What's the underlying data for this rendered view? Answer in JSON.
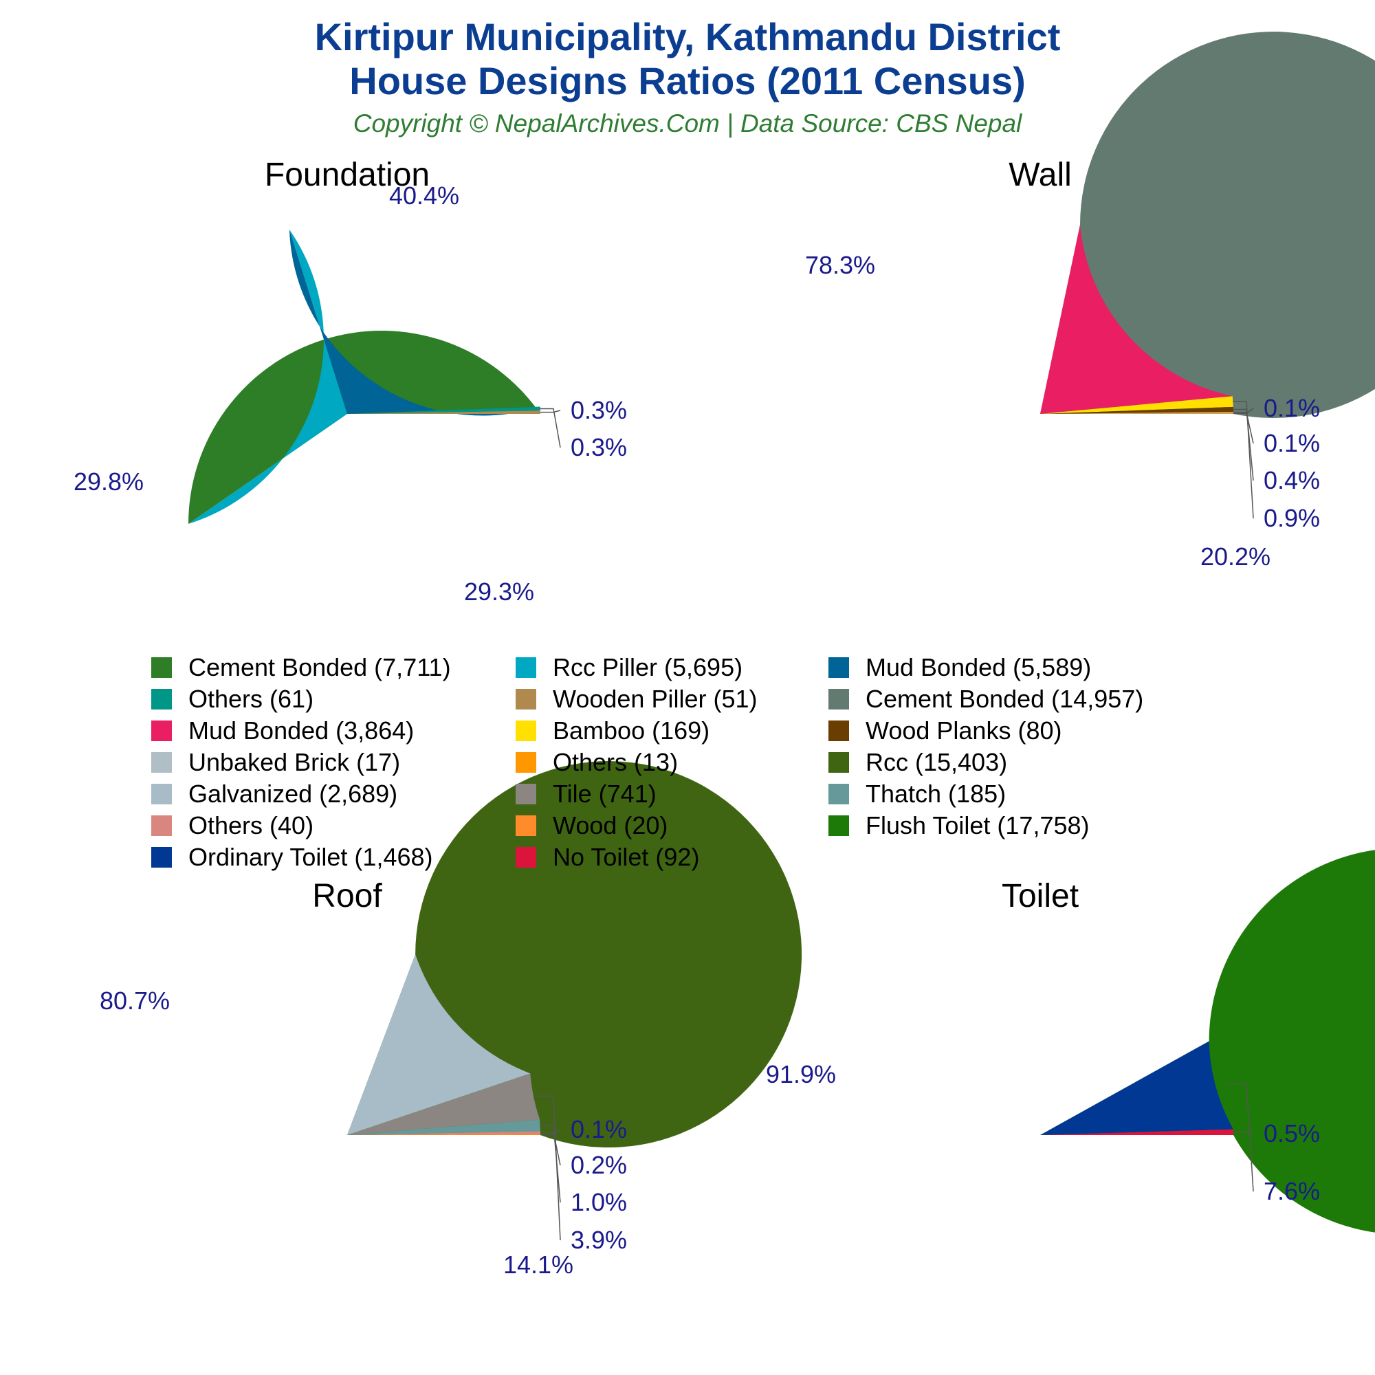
{
  "title_line1": "Kirtipur Municipality, Kathmandu District",
  "title_line2": "House Designs Ratios (2011 Census)",
  "subtitle": "Copyright © NepalArchives.Com | Data Source: CBS Nepal",
  "chart_data": [
    {
      "type": "pie",
      "title": "Foundation",
      "start_angle_deg": 0,
      "slices": [
        {
          "label": "Cement Bonded",
          "value": 7711,
          "percent_label": "40.4%",
          "color": "#2e7d27"
        },
        {
          "label": "Rcc Piller",
          "value": 5695,
          "percent_label": "29.8%",
          "color": "#00a9c1"
        },
        {
          "label": "Mud Bonded",
          "value": 5589,
          "percent_label": "29.3%",
          "color": "#006496"
        },
        {
          "label": "Others",
          "value": 61,
          "percent_label": "0.3%",
          "color": "#009688"
        },
        {
          "label": "Wooden Piller",
          "value": 51,
          "percent_label": "0.3%",
          "color": "#b0894e"
        }
      ]
    },
    {
      "type": "pie",
      "title": "Wall",
      "start_angle_deg": 0,
      "slices": [
        {
          "label": "Cement Bonded",
          "value": 14957,
          "percent_label": "78.3%",
          "color": "#637a70"
        },
        {
          "label": "Mud Bonded",
          "value": 3864,
          "percent_label": "20.2%",
          "color": "#e91e63"
        },
        {
          "label": "Bamboo",
          "value": 169,
          "percent_label": "0.9%",
          "color": "#ffe000"
        },
        {
          "label": "Wood Planks",
          "value": 80,
          "percent_label": "0.4%",
          "color": "#6a3d00"
        },
        {
          "label": "Unbaked Brick",
          "value": 17,
          "percent_label": "0.1%",
          "color": "#b0bec5"
        },
        {
          "label": "Others",
          "value": 13,
          "percent_label": "0.1%",
          "color": "#ff9800"
        }
      ]
    },
    {
      "type": "pie",
      "title": "Roof",
      "start_angle_deg": 0,
      "slices": [
        {
          "label": "Rcc",
          "value": 15403,
          "percent_label": "80.7%",
          "color": "#3f6513"
        },
        {
          "label": "Galvanized",
          "value": 2689,
          "percent_label": "14.1%",
          "color": "#a7bcc6"
        },
        {
          "label": "Tile",
          "value": 741,
          "percent_label": "3.9%",
          "color": "#8c8683"
        },
        {
          "label": "Thatch",
          "value": 185,
          "percent_label": "1.0%",
          "color": "#65999a"
        },
        {
          "label": "Others",
          "value": 40,
          "percent_label": "0.2%",
          "color": "#d98680"
        },
        {
          "label": "Wood",
          "value": 20,
          "percent_label": "0.1%",
          "color": "#ff8b2a"
        }
      ]
    },
    {
      "type": "pie",
      "title": "Toilet",
      "start_angle_deg": 0,
      "slices": [
        {
          "label": "Flush Toilet",
          "value": 17758,
          "percent_label": "91.9%",
          "color": "#1e7a08"
        },
        {
          "label": "Ordinary Toilet",
          "value": 1468,
          "percent_label": "7.6%",
          "color": "#003893"
        },
        {
          "label": "No Toilet",
          "value": 92,
          "percent_label": "0.5%",
          "color": "#dc143c"
        }
      ]
    }
  ],
  "legend": [
    {
      "text": "Cement Bonded (7,711)",
      "color": "#2e7d27"
    },
    {
      "text": "Rcc Piller (5,695)",
      "color": "#00a9c1"
    },
    {
      "text": "Mud Bonded (5,589)",
      "color": "#006496"
    },
    {
      "text": "Others (61)",
      "color": "#009688"
    },
    {
      "text": "Wooden Piller (51)",
      "color": "#b0894e"
    },
    {
      "text": "Cement Bonded (14,957)",
      "color": "#637a70"
    },
    {
      "text": "Mud Bonded (3,864)",
      "color": "#e91e63"
    },
    {
      "text": "Bamboo (169)",
      "color": "#ffe000"
    },
    {
      "text": "Wood Planks (80)",
      "color": "#6a3d00"
    },
    {
      "text": "Unbaked Brick (17)",
      "color": "#b0bec5"
    },
    {
      "text": "Others (13)",
      "color": "#ff9800"
    },
    {
      "text": "Rcc (15,403)",
      "color": "#3f6513"
    },
    {
      "text": "Galvanized (2,689)",
      "color": "#a7bcc6"
    },
    {
      "text": "Tile (741)",
      "color": "#8c8683"
    },
    {
      "text": "Thatch (185)",
      "color": "#65999a"
    },
    {
      "text": "Others (40)",
      "color": "#d98680"
    },
    {
      "text": "Wood (20)",
      "color": "#ff8b2a"
    },
    {
      "text": "Flush Toilet (17,758)",
      "color": "#1e7a08"
    },
    {
      "text": "Ordinary Toilet (1,468)",
      "color": "#003893"
    },
    {
      "text": "No Toilet (92)",
      "color": "#dc143c"
    }
  ]
}
